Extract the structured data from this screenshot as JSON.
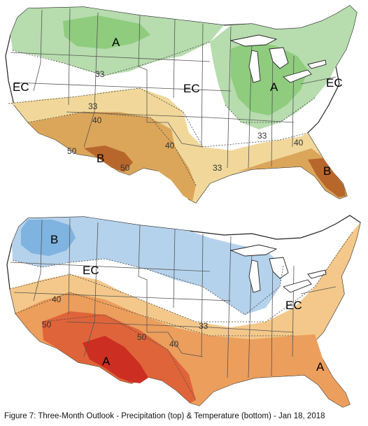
{
  "caption": "Figure 7: Three-Month Outlook - Precipitation (top) & Temperature (bottom) - Jan 18, 2018",
  "colors": {
    "above_light": "#b7dcae",
    "above_mid": "#8fcc7e",
    "dry_light": "#f1d89a",
    "dry_mid": "#dba65a",
    "dry_dark": "#b8672c",
    "cold_light": "#b5d2ec",
    "cold_mid": "#7fb3e0",
    "warm_light": "#f4c88a",
    "warm_mid": "#ec9e5c",
    "warm_dark": "#e0643a",
    "warm_deep": "#cc2f22",
    "border": "#555555",
    "coast": "#222222"
  },
  "precipitation": {
    "labels": {
      "A": "A",
      "EC": "EC",
      "B": "B"
    },
    "contours": {
      "33": "33",
      "40": "40",
      "50": "50"
    }
  },
  "temperature": {
    "labels": {
      "A": "A",
      "EC": "EC",
      "B": "B"
    },
    "contours": {
      "33": "33",
      "40": "40",
      "50": "50"
    }
  }
}
